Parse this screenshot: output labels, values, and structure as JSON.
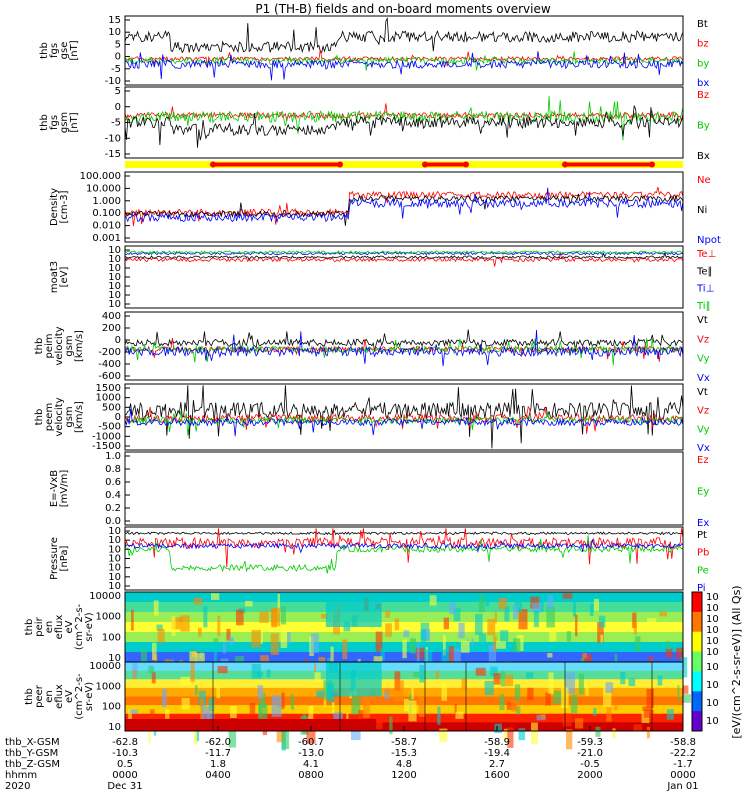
{
  "chart_data": {
    "title": "P1 (TH-B) fields and on-board moments overview",
    "type": "line",
    "x_axis": {
      "label_rows": [
        "thb_X-GSM",
        "thb_Y-GSM",
        "thb_Z-GSM",
        "hhmm",
        "2020"
      ],
      "ticks": [
        {
          "x": "0000",
          "values": [
            "-62.8",
            "-10.3",
            "0.5",
            "0000",
            "Dec 31"
          ]
        },
        {
          "x": "0400",
          "values": [
            "-62.0",
            "-11.7",
            "1.8",
            "0400",
            ""
          ]
        },
        {
          "x": "0800",
          "values": [
            "-60.7",
            "-13.0",
            "4.1",
            "0800",
            ""
          ]
        },
        {
          "x": "1200",
          "values": [
            "-58.7",
            "-15.3",
            "4.8",
            "1200",
            ""
          ]
        },
        {
          "x": "1600",
          "values": [
            "-58.9",
            "-19.4",
            "2.7",
            "1600",
            ""
          ]
        },
        {
          "x": "2000",
          "values": [
            "-59.3",
            "-21.0",
            "-0.5",
            "2000",
            ""
          ]
        },
        {
          "x": "0000",
          "values": [
            "-58.8",
            "-22.2",
            "-1.7",
            "0000",
            "Jan 01"
          ]
        }
      ]
    },
    "panels": [
      {
        "id": "fgs-gse",
        "ylabel": [
          "thb",
          "fgs",
          "gse",
          "[nT]"
        ],
        "yticks": [
          "15",
          "10",
          "5",
          "0",
          "-5",
          "-10"
        ],
        "series": [
          {
            "name": "Bt",
            "color": "#000000"
          },
          {
            "name": "bz",
            "color": "#ff0000"
          },
          {
            "name": "by",
            "color": "#00cc00"
          },
          {
            "name": "bx",
            "color": "#0000ff"
          }
        ]
      },
      {
        "id": "fgs-gsm",
        "ylabel": [
          "thb",
          "fgs",
          "gsm",
          "[nT]"
        ],
        "yticks": [
          "5",
          "0",
          "-5",
          "-10",
          "-15"
        ],
        "series": [
          {
            "name": "Bz",
            "color": "#ff0000"
          },
          {
            "name": "By",
            "color": "#00cc00"
          },
          {
            "name": "Bx",
            "color": "#000000"
          }
        ]
      },
      {
        "id": "density",
        "ylabel": [
          "Density",
          "[cm-3]"
        ],
        "yticks": [
          "100.000",
          "10.000",
          "1.000",
          "0.100",
          "0.010",
          "0.001"
        ],
        "series": [
          {
            "name": "Ne",
            "color": "#ff0000"
          },
          {
            "name": "Ni",
            "color": "#000000"
          },
          {
            "name": "Npot",
            "color": "#0000ff"
          }
        ]
      },
      {
        "id": "temperature",
        "ylabel": [
          "moat3",
          "[eV]"
        ],
        "yticks": [
          "10",
          "10",
          "10",
          "10",
          "10",
          "10",
          "10"
        ],
        "series": [
          {
            "name": "Te⊥",
            "color": "#ff0000"
          },
          {
            "name": "Te∥",
            "color": "#000000"
          },
          {
            "name": "Ti⊥",
            "color": "#0000ff"
          },
          {
            "name": "Ti∥",
            "color": "#00cc00"
          }
        ]
      },
      {
        "id": "peim-velocity",
        "ylabel": [
          "thb",
          "peim",
          "velocity",
          "gsm",
          "[km/s]"
        ],
        "yticks": [
          "400",
          "200",
          "0",
          "-200",
          "-400",
          "-600"
        ],
        "series": [
          {
            "name": "Vt",
            "color": "#000000"
          },
          {
            "name": "Vz",
            "color": "#ff0000"
          },
          {
            "name": "Vy",
            "color": "#00cc00"
          },
          {
            "name": "Vx",
            "color": "#0000ff"
          }
        ]
      },
      {
        "id": "peem-velocity",
        "ylabel": [
          "thb",
          "peem",
          "velocity",
          "gsm",
          "[km/s]"
        ],
        "yticks": [
          "1500",
          "1000",
          "500",
          "0",
          "-500",
          "-1000",
          "-1500"
        ],
        "series": [
          {
            "name": "Vt",
            "color": "#000000"
          },
          {
            "name": "Vz",
            "color": "#ff0000"
          },
          {
            "name": "Vy",
            "color": "#00cc00"
          },
          {
            "name": "Vx",
            "color": "#0000ff"
          }
        ]
      },
      {
        "id": "efield",
        "ylabel": [
          "E=-VxB",
          "[mV/m]"
        ],
        "yticks": [
          "1.0",
          "0.8",
          "0.6",
          "0.4",
          "0.2",
          "0.0"
        ],
        "series": [
          {
            "name": "Ez",
            "color": "#ff0000"
          },
          {
            "name": "Ey",
            "color": "#00cc00"
          },
          {
            "name": "Ex",
            "color": "#0000ff"
          }
        ]
      },
      {
        "id": "pressure",
        "ylabel": [
          "Pressure",
          "[nPa]"
        ],
        "yticks": [
          "10",
          "10",
          "10",
          "10",
          "10",
          "10",
          "10"
        ],
        "series": [
          {
            "name": "Pt",
            "color": "#000000"
          },
          {
            "name": "Pb",
            "color": "#ff0000"
          },
          {
            "name": "Pe",
            "color": "#00cc00"
          },
          {
            "name": "Pi",
            "color": "#0000ff"
          }
        ]
      },
      {
        "id": "peir-spectrogram",
        "ylabel": [
          "thb",
          "peir",
          "en",
          "eflux",
          "eV",
          "(cm^2-s-",
          "sr-eV)"
        ],
        "yticks": [
          "10000",
          "1000",
          "100",
          "10"
        ]
      },
      {
        "id": "peer-spectrogram",
        "ylabel": [
          "thb",
          "peer",
          "en",
          "eflux",
          "eV",
          "(cm^2-s-",
          "sr-eV)"
        ],
        "yticks": [
          "10000",
          "1000",
          "100",
          "10"
        ]
      }
    ],
    "colorbar": {
      "label": "[eV/(cm^2-s-sr-eV)] (All Qs)",
      "peir_ticks": [
        "10",
        "10",
        "10",
        "10",
        "10",
        "10"
      ],
      "peer_ticks": [
        "10",
        "10",
        "10",
        "10"
      ]
    }
  }
}
